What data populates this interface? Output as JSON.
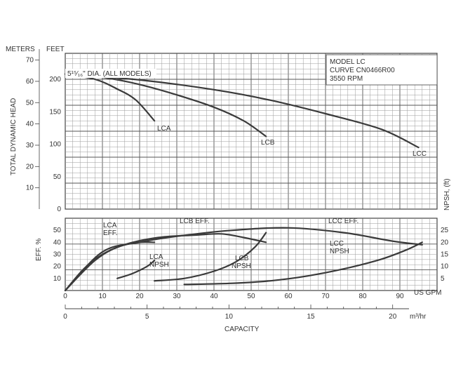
{
  "header": {
    "meters_label": "METERS",
    "feet_label": "FEET",
    "ylabel_head": "TOTAL DYNAMIC HEAD",
    "ylabel_eff": "EFF. %",
    "ylabel_npsh": "NPSH, (ft)",
    "diameter_note": "5¹⁵⁄₁₆\" DIA. (ALL MODELS)",
    "info_lines": [
      "MODEL LC",
      "CURVE CN0466R00",
      "3550 RPM"
    ],
    "xlabel": "CAPACITY",
    "gpm_unit": "US GPM",
    "m3_unit": "m³/hr"
  },
  "chart_data": [
    {
      "type": "line",
      "name": "head-capacity",
      "x_unit": "US GPM",
      "y_unit": "FEET",
      "xlim": [
        0,
        100
      ],
      "ylim": [
        0,
        240
      ],
      "meters_ticks": [
        10,
        20,
        30,
        40,
        50,
        60,
        70
      ],
      "feet_ticks": [
        0,
        50,
        100,
        150,
        200
      ],
      "series": [
        {
          "name": "LCA",
          "points": [
            [
              0,
              208
            ],
            [
              8,
              200
            ],
            [
              14,
              185
            ],
            [
              19,
              168
            ],
            [
              24,
              136
            ]
          ]
        },
        {
          "name": "LCB",
          "points": [
            [
              0,
              208
            ],
            [
              10,
              203
            ],
            [
              20,
              192
            ],
            [
              30,
              176
            ],
            [
              40,
              157
            ],
            [
              48,
              136
            ],
            [
              54,
              112
            ]
          ]
        },
        {
          "name": "LCC",
          "points": [
            [
              0,
              208
            ],
            [
              20,
              199
            ],
            [
              40,
              184
            ],
            [
              55,
              168
            ],
            [
              70,
              147
            ],
            [
              85,
              123
            ],
            [
              95,
              95
            ]
          ]
        }
      ],
      "grid": true
    },
    {
      "type": "line",
      "name": "efficiency-npsh",
      "x_unit": "US GPM",
      "xlim": [
        0,
        100
      ],
      "eff_ylim": [
        0,
        60
      ],
      "eff_ticks": [
        10,
        20,
        30,
        40,
        50
      ],
      "npsh_ylim": [
        0,
        30
      ],
      "npsh_ticks": [
        5,
        10,
        15,
        20,
        25
      ],
      "x_ticks": [
        0,
        10,
        20,
        30,
        40,
        50,
        60,
        70,
        80,
        90
      ],
      "m3hr_ticks": [
        0,
        5,
        10,
        15,
        20
      ],
      "series": [
        {
          "name": "LCA EFF.",
          "axis": "eff",
          "points": [
            [
              0,
              0
            ],
            [
              5,
              18
            ],
            [
              10,
              30
            ],
            [
              15,
              37
            ],
            [
              20,
              40
            ],
            [
              24,
              40
            ]
          ]
        },
        {
          "name": "LCB EFF.",
          "axis": "eff",
          "points": [
            [
              0,
              0
            ],
            [
              8,
              25
            ],
            [
              15,
              37
            ],
            [
              25,
              44
            ],
            [
              35,
              46
            ],
            [
              42,
              47
            ],
            [
              48,
              44
            ],
            [
              54,
              40
            ]
          ]
        },
        {
          "name": "LCC EFF.",
          "axis": "eff",
          "points": [
            [
              0,
              0
            ],
            [
              10,
              32
            ],
            [
              20,
              40
            ],
            [
              30,
              45
            ],
            [
              45,
              50
            ],
            [
              60,
              52
            ],
            [
              75,
              48
            ],
            [
              88,
              41
            ],
            [
              96,
              38
            ]
          ]
        },
        {
          "name": "LCA NPSH",
          "axis": "npsh",
          "points": [
            [
              14,
              5
            ],
            [
              18,
              7
            ],
            [
              22,
              10
            ],
            [
              24,
              12.5
            ]
          ]
        },
        {
          "name": "LCB NPSH",
          "axis": "npsh",
          "points": [
            [
              24,
              4
            ],
            [
              32,
              5
            ],
            [
              40,
              8
            ],
            [
              46,
              12
            ],
            [
              51,
              18
            ],
            [
              54,
              24
            ]
          ]
        },
        {
          "name": "LCC NPSH",
          "axis": "npsh",
          "points": [
            [
              32,
              2.5
            ],
            [
              45,
              3
            ],
            [
              55,
              4
            ],
            [
              65,
              6
            ],
            [
              75,
              9
            ],
            [
              85,
              13
            ],
            [
              92,
              17
            ],
            [
              96,
              20
            ]
          ]
        }
      ],
      "grid": true
    }
  ],
  "curve_labels": {
    "lca": "LCA",
    "lcb": "LCB",
    "lcc": "LCC",
    "lca_eff": [
      "LCA",
      "EFF."
    ],
    "lcb_eff": "LCB EFF.",
    "lcc_eff": "LCC EFF.",
    "lca_npsh": [
      "LCA",
      "NPSH"
    ],
    "lcb_npsh": [
      "LCB",
      "NPSH"
    ],
    "lcc_npsh": [
      "LCC",
      "NPSH"
    ]
  }
}
